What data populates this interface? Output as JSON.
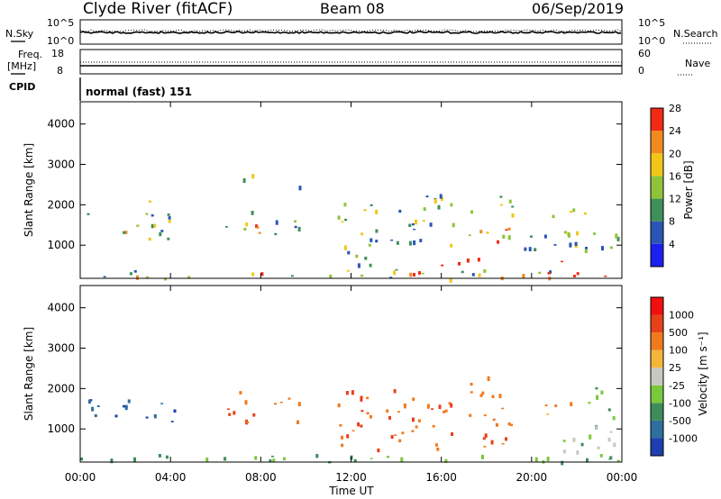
{
  "header": {
    "radar": "Clyde River (fitACF)",
    "beam": "Beam 08",
    "date": "06/Sep/2019"
  },
  "top_panels": {
    "nsky_label": "N.Sky",
    "nsearch_label": "N.Search",
    "freq_label_1": "Freq.",
    "freq_label_2": "[MHz]",
    "nave_label": "Nave",
    "cpid_label": "CPID",
    "cpid_text": "normal (fast) 151",
    "noise_ticks_left": [
      "10^5",
      "10^0"
    ],
    "noise_ticks_right": [
      "10^5",
      "10^0"
    ],
    "freq_ticks": [
      "18",
      "8"
    ],
    "nave_ticks": [
      "60",
      "0"
    ]
  },
  "chart_data": [
    {
      "type": "heatmap",
      "name": "power",
      "ylabel": "Slant Range [km]",
      "ylim": [
        180,
        4550
      ],
      "yticks": [
        "1000",
        "2000",
        "3000",
        "4000"
      ],
      "colorbar_label": "Power [dB]",
      "colorbar_ticks": [
        "4",
        "8",
        "12",
        "16",
        "20",
        "24",
        "28"
      ],
      "colors": [
        "#1e1ef0",
        "#2a55b5",
        "#3f8f5a",
        "#8fc43a",
        "#f2c619",
        "#f08a1f",
        "#f02a14"
      ],
      "regions": [
        {
          "t": [
            0.3,
            4.2
          ],
          "r": [
            1150,
            1850
          ],
          "level": [
            1,
            5
          ]
        },
        {
          "t": [
            2.8,
            3.5
          ],
          "r": [
            1950,
            2250
          ],
          "level": [
            3,
            4
          ]
        },
        {
          "t": [
            6.3,
            7.9
          ],
          "r": [
            1150,
            1950
          ],
          "level": [
            2,
            6
          ]
        },
        {
          "t": [
            6.8,
            7.7
          ],
          "r": [
            2450,
            2800
          ],
          "level": [
            2,
            4
          ]
        },
        {
          "t": [
            8.5,
            9.8
          ],
          "r": [
            1300,
            1950
          ],
          "level": [
            1,
            3
          ]
        },
        {
          "t": [
            9.3,
            9.9
          ],
          "r": [
            2150,
            2500
          ],
          "level": [
            1,
            3
          ]
        },
        {
          "t": [
            11.3,
            13.3
          ],
          "r": [
            500,
            2100
          ],
          "level": [
            1,
            4
          ]
        },
        {
          "t": [
            13.5,
            16.5
          ],
          "r": [
            1000,
            2300
          ],
          "level": [
            1,
            4
          ]
        },
        {
          "t": [
            15.5,
            17.8
          ],
          "r": [
            450,
            750
          ],
          "level": [
            5,
            6
          ]
        },
        {
          "t": [
            17.2,
            19.2
          ],
          "r": [
            1100,
            2350
          ],
          "level": [
            2,
            6
          ]
        },
        {
          "t": [
            19.5,
            22.5
          ],
          "r": [
            900,
            1950
          ],
          "level": [
            1,
            4
          ]
        },
        {
          "t": [
            20.8,
            22.0
          ],
          "r": [
            250,
            650
          ],
          "level": [
            5,
            6
          ]
        },
        {
          "t": [
            22.3,
            24.0
          ],
          "r": [
            800,
            1400
          ],
          "level": [
            1,
            3
          ]
        },
        {
          "t": [
            0.0,
            24.0
          ],
          "r": [
            180,
            420
          ],
          "level": [
            0,
            6
          ]
        }
      ]
    },
    {
      "type": "heatmap",
      "name": "velocity",
      "ylabel": "Slant Range [km]",
      "ylim": [
        180,
        4550
      ],
      "yticks": [
        "1000",
        "2000",
        "3000",
        "4000"
      ],
      "colorbar_label": "Velocity [m s⁻¹]",
      "colorbar_ticks": [
        "1000",
        "500",
        "100",
        "25",
        "-25",
        "-100",
        "-500",
        "-1000"
      ],
      "colors": [
        "#1f3fb0",
        "#2e6f9e",
        "#3e8c5a",
        "#7ac83c",
        "#c8c8c0",
        "#f5b53a",
        "#f07a1e",
        "#e8401a",
        "#f01010"
      ],
      "regions": [
        {
          "t": [
            0.3,
            4.2
          ],
          "r": [
            1150,
            1850
          ],
          "level": [
            0,
            1
          ]
        },
        {
          "t": [
            6.3,
            7.9
          ],
          "r": [
            1100,
            1950
          ],
          "level": [
            6,
            7
          ]
        },
        {
          "t": [
            8.5,
            9.8
          ],
          "r": [
            1200,
            1900
          ],
          "level": [
            6,
            6
          ]
        },
        {
          "t": [
            11.3,
            13.3
          ],
          "r": [
            500,
            2000
          ],
          "level": [
            6,
            7
          ]
        },
        {
          "t": [
            13.5,
            16.5
          ],
          "r": [
            700,
            2100
          ],
          "level": [
            6,
            7
          ]
        },
        {
          "t": [
            15.5,
            19.0
          ],
          "r": [
            500,
            900
          ],
          "level": [
            6,
            7
          ]
        },
        {
          "t": [
            17.2,
            19.2
          ],
          "r": [
            1100,
            2350
          ],
          "level": [
            6,
            6
          ]
        },
        {
          "t": [
            20.5,
            21.8
          ],
          "r": [
            1300,
            1800
          ],
          "level": [
            5,
            6
          ]
        },
        {
          "t": [
            20.5,
            22.5
          ],
          "r": [
            250,
            900
          ],
          "level": [
            2,
            4
          ]
        },
        {
          "t": [
            22.5,
            24.0
          ],
          "r": [
            500,
            2100
          ],
          "level": [
            2,
            4
          ]
        },
        {
          "t": [
            0.0,
            24.0
          ],
          "r": [
            180,
            400
          ],
          "level": [
            2,
            3
          ]
        }
      ]
    }
  ],
  "x_axis": {
    "xlim": [
      0,
      24
    ],
    "ticks": [
      "00:00",
      "04:00",
      "08:00",
      "12:00",
      "16:00",
      "20:00",
      "00:00"
    ],
    "label": "Time UT"
  }
}
